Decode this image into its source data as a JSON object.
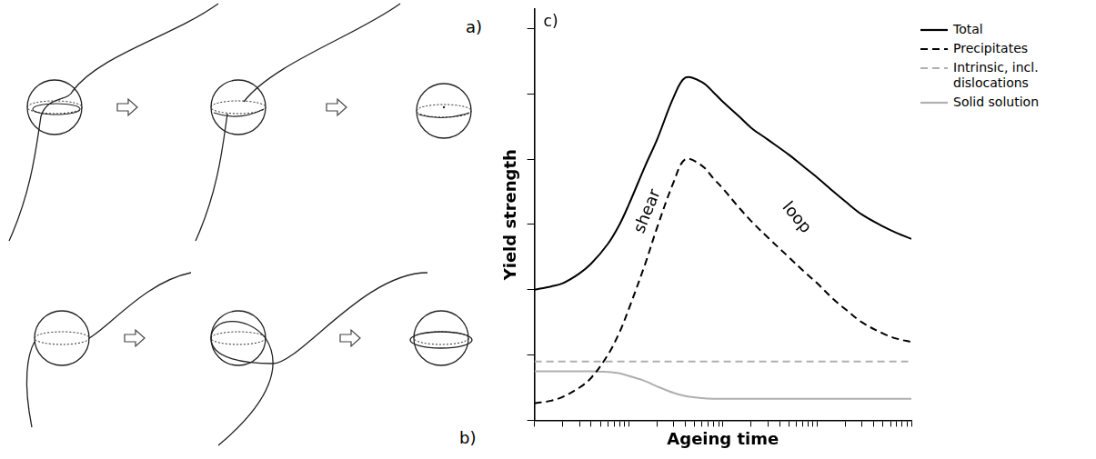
{
  "panels": [
    {
      "label": "a)"
    },
    {
      "label": "b)"
    }
  ],
  "chart_data": {
    "type": "line",
    "panel_label": "c)",
    "x_label": "Ageing time",
    "y_label": "Yield strength",
    "log": "x",
    "grid": false,
    "tick_labels": false,
    "legend": "right",
    "xlim": [
      1,
      10000
    ],
    "xticks": [
      1,
      2,
      3,
      4,
      5,
      6,
      7,
      8,
      9,
      10,
      20,
      30,
      40,
      50,
      60,
      70,
      80,
      90,
      100,
      200,
      300,
      400,
      500,
      600,
      700,
      800,
      900,
      1000,
      2000,
      3000,
      4000,
      5000,
      6000,
      7000,
      8000,
      9000,
      10000
    ],
    "ylim": [
      0,
      6.3
    ],
    "yticks": [
      0,
      1,
      2,
      3,
      4,
      5,
      6
    ],
    "x": [
      1,
      1.5,
      2,
      3,
      4,
      6,
      8,
      10,
      15,
      20,
      30,
      40,
      60,
      80,
      100,
      150,
      200,
      300,
      500,
      700,
      1000,
      1500,
      2000,
      3000,
      5000,
      7000,
      10000
    ],
    "series": [
      {
        "name": "Total",
        "color": "#000000",
        "line_style": "solid",
        "values": [
          2.0,
          2.05,
          2.1,
          2.25,
          2.4,
          2.7,
          3.0,
          3.3,
          3.9,
          4.3,
          4.95,
          5.25,
          5.18,
          5.02,
          4.88,
          4.65,
          4.48,
          4.3,
          4.07,
          3.9,
          3.72,
          3.5,
          3.35,
          3.15,
          2.97,
          2.87,
          2.78
        ]
      },
      {
        "name": "Precipitates",
        "color": "#000000",
        "line_style": "dashed",
        "values": [
          0.26,
          0.3,
          0.36,
          0.5,
          0.65,
          1.0,
          1.35,
          1.7,
          2.4,
          2.95,
          3.65,
          4.0,
          3.9,
          3.7,
          3.55,
          3.25,
          3.05,
          2.8,
          2.5,
          2.3,
          2.1,
          1.85,
          1.7,
          1.5,
          1.33,
          1.25,
          1.2
        ]
      },
      {
        "name": "Intrinsic, incl. dislocations",
        "color": "#b0b0b0",
        "line_style": "dashed",
        "values": [
          0.9,
          0.9,
          0.9,
          0.9,
          0.9,
          0.9,
          0.9,
          0.9,
          0.9,
          0.9,
          0.9,
          0.9,
          0.9,
          0.9,
          0.9,
          0.9,
          0.9,
          0.9,
          0.9,
          0.9,
          0.9,
          0.9,
          0.9,
          0.9,
          0.9,
          0.9,
          0.9
        ]
      },
      {
        "name": "Solid solution",
        "color": "#b0b0b0",
        "line_style": "solid",
        "values": [
          0.75,
          0.75,
          0.75,
          0.75,
          0.75,
          0.74,
          0.72,
          0.68,
          0.6,
          0.52,
          0.42,
          0.37,
          0.34,
          0.33,
          0.33,
          0.33,
          0.33,
          0.33,
          0.33,
          0.33,
          0.33,
          0.33,
          0.33,
          0.33,
          0.33,
          0.33,
          0.33
        ]
      }
    ],
    "annotations": [
      {
        "text": "shear",
        "x": 16,
        "y": 3.2
      },
      {
        "text": "loop",
        "x": 600,
        "y": 3.1
      }
    ]
  }
}
